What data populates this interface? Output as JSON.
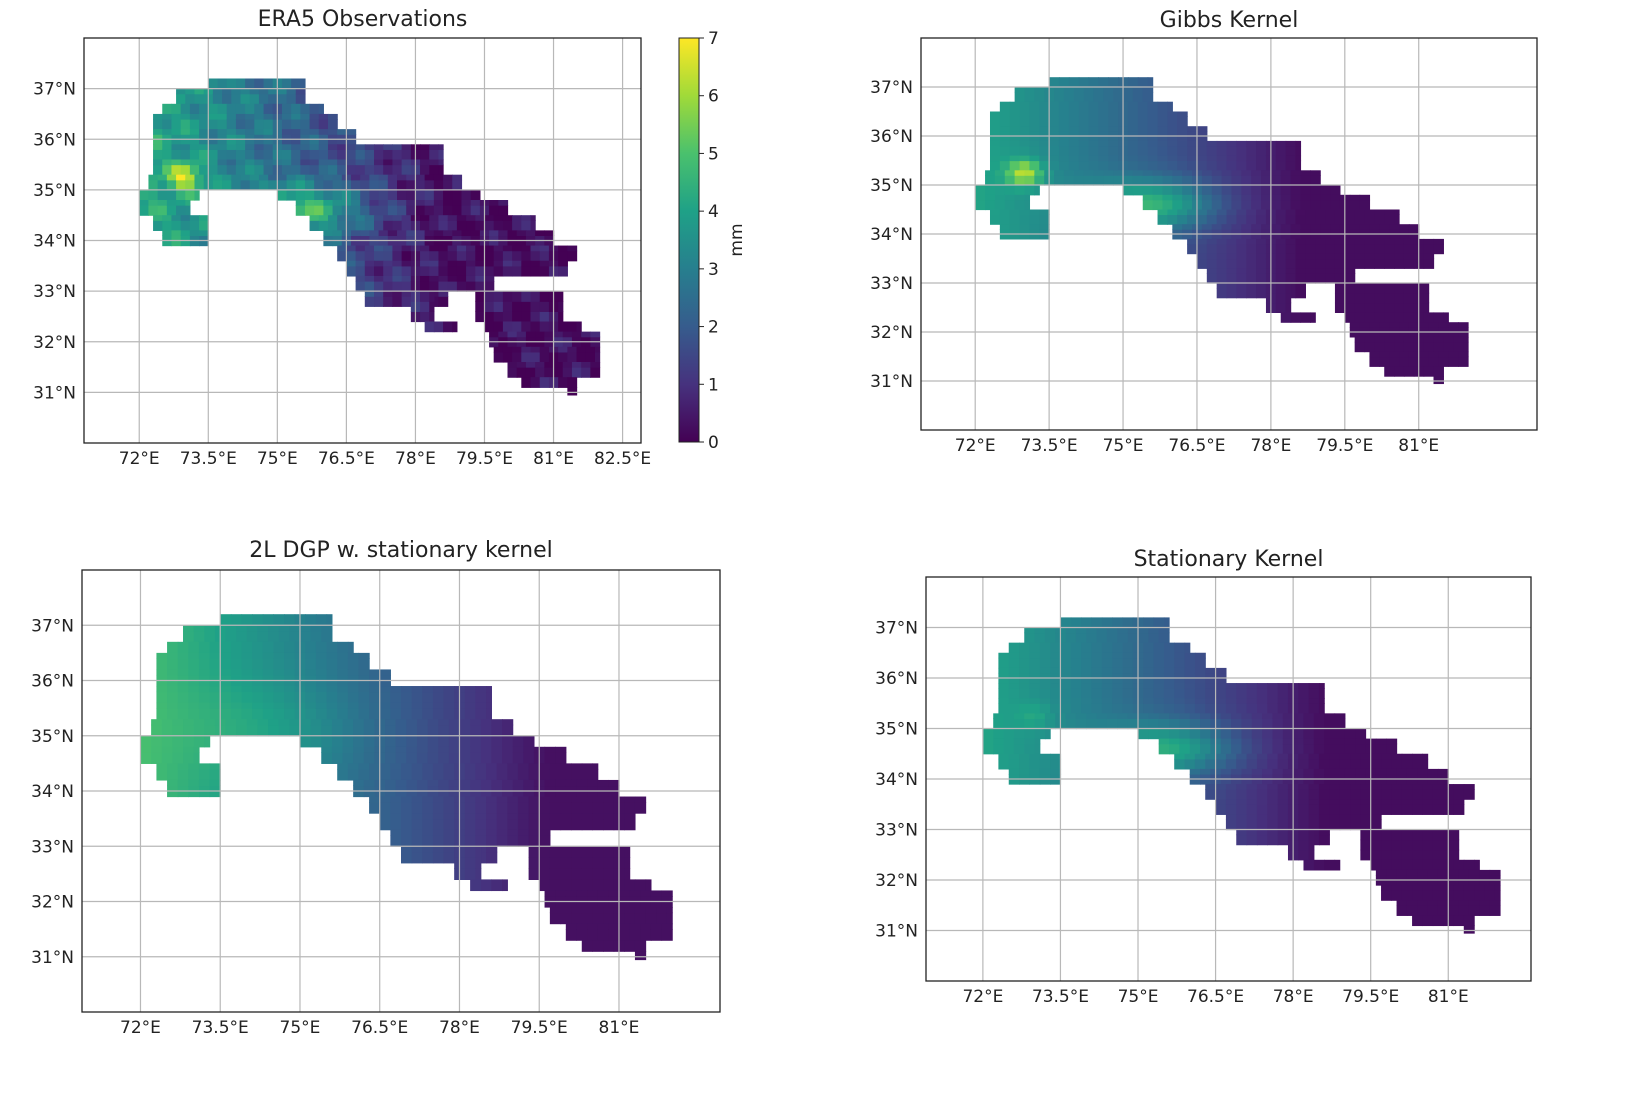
{
  "colors": {
    "stops": [
      "#440154",
      "#46327e",
      "#365c8d",
      "#277f8e",
      "#1fa187",
      "#4ac16d",
      "#a0da39",
      "#fde725"
    ]
  },
  "chart_data": [
    {
      "id": "era5",
      "type": "heatmap",
      "title": "ERA5 Observations",
      "xlim": [
        70.8,
        82.9
      ],
      "ylim": [
        30.0,
        38.0
      ],
      "xticks": [
        72,
        73.5,
        75,
        76.5,
        78,
        79.5,
        81,
        82.5
      ],
      "xtick_labels": [
        "72°E",
        "73.5°E",
        "75°E",
        "76.5°E",
        "78°E",
        "79.5°E",
        "81°E",
        "82.5°E"
      ],
      "yticks": [
        31,
        32,
        33,
        34,
        35,
        36,
        37
      ],
      "ytick_labels": [
        "31°N",
        "32°N",
        "33°N",
        "34°N",
        "35°N",
        "36°N",
        "37°N"
      ],
      "variant": "observed",
      "colorbar": {
        "label": "mm",
        "min": 0,
        "max": 7,
        "ticks": [
          "0",
          "1",
          "2",
          "3",
          "4",
          "5",
          "6",
          "7"
        ]
      }
    },
    {
      "id": "gibbs",
      "type": "heatmap",
      "title": "Gibbs Kernel",
      "xlim": [
        70.9,
        83.4
      ],
      "ylim": [
        30.0,
        38.0
      ],
      "xticks": [
        72,
        73.5,
        75,
        76.5,
        78,
        79.5,
        81
      ],
      "xtick_labels": [
        "72°E",
        "73.5°E",
        "75°E",
        "76.5°E",
        "78°E",
        "79.5°E",
        "81°E"
      ],
      "yticks": [
        31,
        32,
        33,
        34,
        35,
        36,
        37
      ],
      "ytick_labels": [
        "31°N",
        "32°N",
        "33°N",
        "34°N",
        "35°N",
        "36°N",
        "37°N"
      ],
      "variant": "gibbs"
    },
    {
      "id": "dgp",
      "type": "heatmap",
      "title": "2L DGP w. stationary kernel",
      "xlim": [
        70.9,
        82.9
      ],
      "ylim": [
        30.0,
        38.0
      ],
      "xticks": [
        72,
        73.5,
        75,
        76.5,
        78,
        79.5,
        81
      ],
      "xtick_labels": [
        "72°E",
        "73.5°E",
        "75°E",
        "76.5°E",
        "78°E",
        "79.5°E",
        "81°E"
      ],
      "yticks": [
        31,
        32,
        33,
        34,
        35,
        36,
        37
      ],
      "ytick_labels": [
        "31°N",
        "32°N",
        "33°N",
        "34°N",
        "35°N",
        "36°N",
        "37°N"
      ],
      "variant": "smooth"
    },
    {
      "id": "stationary",
      "type": "heatmap",
      "title": "Stationary Kernel",
      "xlim": [
        70.9,
        82.6
      ],
      "ylim": [
        30.0,
        38.0
      ],
      "xticks": [
        72,
        73.5,
        75,
        76.5,
        78,
        79.5,
        81
      ],
      "xtick_labels": [
        "72°E",
        "73.5°E",
        "75°E",
        "76.5°E",
        "78°E",
        "79.5°E",
        "81°E"
      ],
      "yticks": [
        31,
        32,
        33,
        34,
        35,
        36,
        37
      ],
      "ytick_labels": [
        "31°N",
        "32°N",
        "33°N",
        "34°N",
        "35°N",
        "36°N",
        "37°N"
      ],
      "variant": "stationary"
    }
  ]
}
